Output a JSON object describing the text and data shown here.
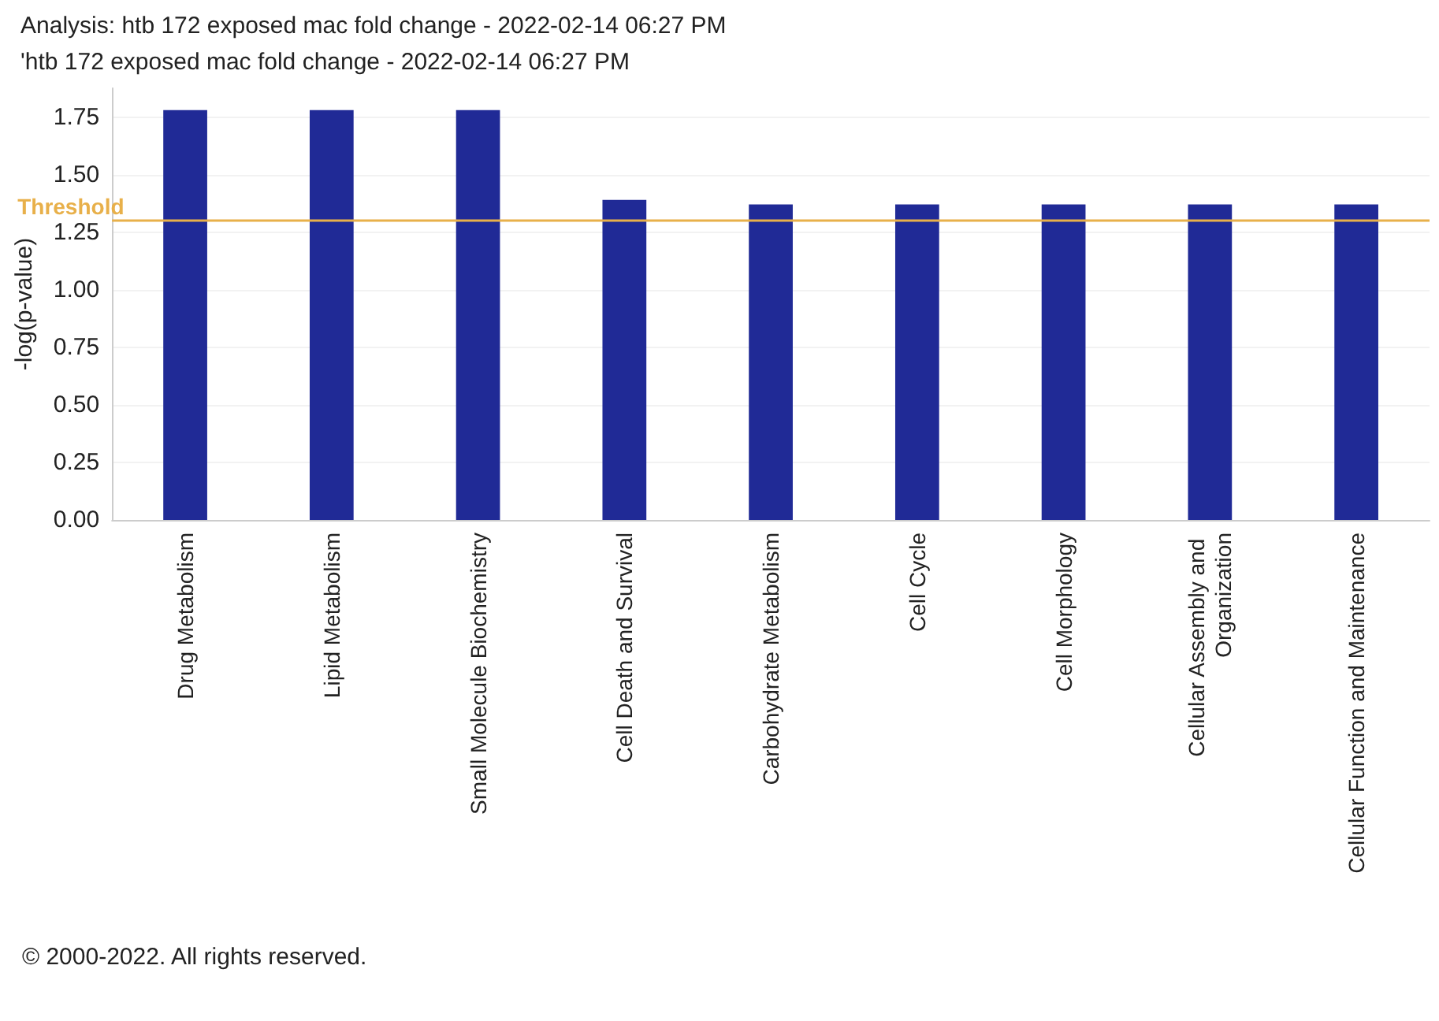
{
  "chart_data": {
    "type": "bar",
    "title": "Analysis: htb 172 exposed mac fold change - 2022-02-14 06:27 PM",
    "subtitle": "'htb 172 exposed mac fold change - 2022-02-14 06:27 PM",
    "ylabel": "-log(p-value)",
    "categories": [
      "Drug Metabolism",
      "Lipid Metabolism",
      "Small Molecule Biochemistry",
      "Cell Death and Survival",
      "Carbohydrate Metabolism",
      "Cell Cycle",
      "Cell Morphology",
      "Cellular Assembly and Organization",
      "Cellular Function and Maintenance"
    ],
    "values": [
      1.78,
      1.78,
      1.78,
      1.39,
      1.37,
      1.37,
      1.37,
      1.37,
      1.37
    ],
    "color": "#202a96",
    "ylim": [
      0,
      1.875
    ],
    "yticks": [
      {
        "value": 0,
        "label": "0.00"
      },
      {
        "value": 0.25,
        "label": "0.25"
      },
      {
        "value": 0.5,
        "label": "0.50"
      },
      {
        "value": 0.75,
        "label": "0.75"
      },
      {
        "value": 1,
        "label": "1.00"
      },
      {
        "value": 1.25,
        "label": "1.25"
      },
      {
        "value": 1.5,
        "label": "1.50"
      },
      {
        "value": 1.75,
        "label": "1.75"
      }
    ],
    "ref_lines": [
      {
        "axis": "y",
        "value": 1.3,
        "label": "Threshold",
        "color": "#e8b04a"
      }
    ],
    "annotations": [
      "© 2000-2022. All rights reserved."
    ],
    "grid": "y"
  }
}
